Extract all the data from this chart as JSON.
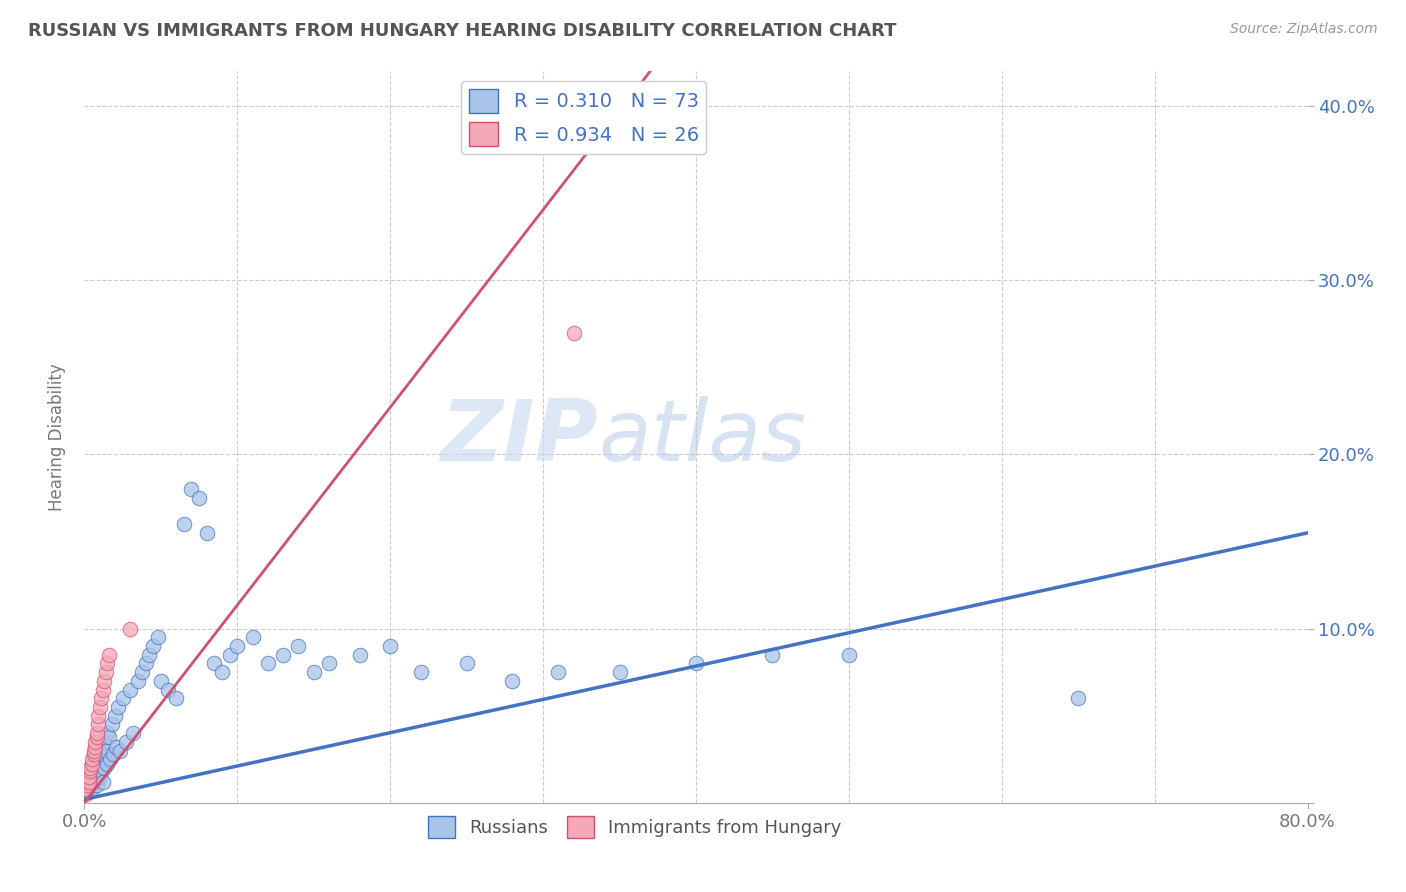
{
  "title": "RUSSIAN VS IMMIGRANTS FROM HUNGARY HEARING DISABILITY CORRELATION CHART",
  "source": "Source: ZipAtlas.com",
  "ylabel": "Hearing Disability",
  "xlim": [
    0.0,
    0.8
  ],
  "ylim": [
    0.0,
    0.42
  ],
  "watermark_zip": "ZIP",
  "watermark_atlas": "atlas",
  "blue_R": "0.310",
  "blue_N": "73",
  "pink_R": "0.934",
  "pink_N": "26",
  "blue_color": "#A8C4E8",
  "pink_color": "#F4A8B8",
  "blue_line_color": "#4472C4",
  "pink_line_color": "#D05070",
  "background_color": "#ffffff",
  "grid_color": "#CCCCCC",
  "russians_x": [
    0.001,
    0.002,
    0.003,
    0.003,
    0.004,
    0.004,
    0.005,
    0.005,
    0.006,
    0.006,
    0.007,
    0.007,
    0.008,
    0.008,
    0.009,
    0.009,
    0.01,
    0.01,
    0.011,
    0.011,
    0.012,
    0.012,
    0.013,
    0.013,
    0.014,
    0.015,
    0.015,
    0.016,
    0.017,
    0.018,
    0.019,
    0.02,
    0.021,
    0.022,
    0.023,
    0.025,
    0.027,
    0.03,
    0.032,
    0.035,
    0.038,
    0.04,
    0.042,
    0.045,
    0.048,
    0.05,
    0.055,
    0.06,
    0.065,
    0.07,
    0.075,
    0.08,
    0.085,
    0.09,
    0.095,
    0.1,
    0.11,
    0.12,
    0.13,
    0.14,
    0.15,
    0.16,
    0.18,
    0.2,
    0.22,
    0.25,
    0.28,
    0.31,
    0.35,
    0.4,
    0.45,
    0.5,
    0.65
  ],
  "russians_y": [
    0.01,
    0.008,
    0.012,
    0.006,
    0.015,
    0.01,
    0.018,
    0.008,
    0.02,
    0.012,
    0.015,
    0.025,
    0.018,
    0.01,
    0.022,
    0.014,
    0.025,
    0.016,
    0.03,
    0.018,
    0.028,
    0.012,
    0.035,
    0.02,
    0.03,
    0.04,
    0.022,
    0.038,
    0.025,
    0.045,
    0.028,
    0.05,
    0.032,
    0.055,
    0.03,
    0.06,
    0.035,
    0.065,
    0.04,
    0.07,
    0.075,
    0.08,
    0.085,
    0.09,
    0.095,
    0.07,
    0.065,
    0.06,
    0.16,
    0.18,
    0.175,
    0.155,
    0.08,
    0.075,
    0.085,
    0.09,
    0.095,
    0.08,
    0.085,
    0.09,
    0.075,
    0.08,
    0.085,
    0.09,
    0.075,
    0.08,
    0.07,
    0.075,
    0.075,
    0.08,
    0.085,
    0.085,
    0.06
  ],
  "hungary_x": [
    0.001,
    0.002,
    0.002,
    0.003,
    0.003,
    0.004,
    0.004,
    0.005,
    0.005,
    0.006,
    0.006,
    0.007,
    0.007,
    0.008,
    0.008,
    0.009,
    0.009,
    0.01,
    0.011,
    0.012,
    0.013,
    0.014,
    0.015,
    0.016,
    0.03,
    0.32
  ],
  "hungary_y": [
    0.005,
    0.008,
    0.01,
    0.012,
    0.015,
    0.018,
    0.02,
    0.022,
    0.025,
    0.028,
    0.03,
    0.032,
    0.035,
    0.038,
    0.04,
    0.045,
    0.05,
    0.055,
    0.06,
    0.065,
    0.07,
    0.075,
    0.08,
    0.085,
    0.1,
    0.27
  ],
  "blue_line_x": [
    0.0,
    0.8
  ],
  "blue_line_y": [
    0.002,
    0.155
  ],
  "pink_line_x": [
    0.0,
    0.37
  ],
  "pink_line_y": [
    0.0,
    0.42
  ]
}
